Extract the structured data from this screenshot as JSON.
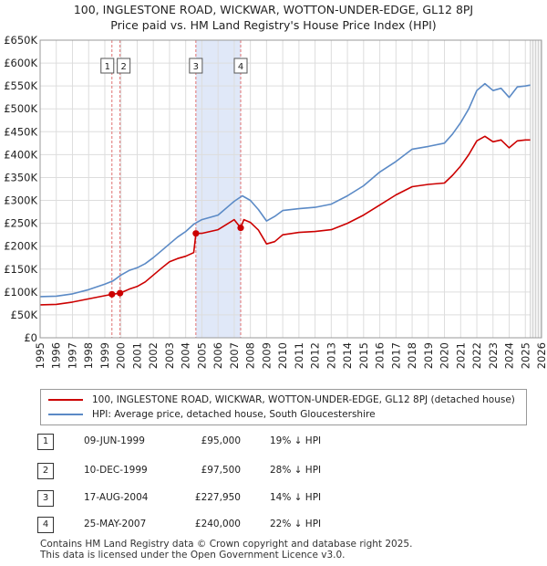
{
  "title_line1": "100, INGLESTONE ROAD, WICKWAR, WOTTON-UNDER-EDGE, GL12 8PJ",
  "title_line2": "Price paid vs. HM Land Registry's House Price Index (HPI)",
  "colors": {
    "property": "#cc0000",
    "hpi": "#5b8ac6",
    "shade": "#e0e8f8",
    "marker_line": "#e07070"
  },
  "legend": {
    "property": "100, INGLESTONE ROAD, WICKWAR, WOTTON-UNDER-EDGE, GL12 8PJ (detached house)",
    "hpi": "HPI: Average price, detached house, South Gloucestershire"
  },
  "transactions": [
    {
      "num": "1",
      "date": "09-JUN-1999",
      "price": "£95,000",
      "hpi": "19% ↓ HPI"
    },
    {
      "num": "2",
      "date": "10-DEC-1999",
      "price": "£97,500",
      "hpi": "28% ↓ HPI"
    },
    {
      "num": "3",
      "date": "17-AUG-2004",
      "price": "£227,950",
      "hpi": "14% ↓ HPI"
    },
    {
      "num": "4",
      "date": "25-MAY-2007",
      "price": "£240,000",
      "hpi": "22% ↓ HPI"
    }
  ],
  "footer": {
    "line1": "Contains HM Land Registry data © Crown copyright and database right 2025.",
    "line2": "This data is licensed under the Open Government Licence v3.0."
  },
  "chart_data": {
    "type": "line",
    "title": "100, INGLESTONE ROAD, WICKWAR, WOTTON-UNDER-EDGE, GL12 8PJ",
    "subtitle": "Price paid vs. HM Land Registry's House Price Index (HPI)",
    "xlim": [
      1995,
      2026
    ],
    "ylim": [
      0,
      650000
    ],
    "x_ticks": [
      1995,
      1996,
      1997,
      1998,
      1999,
      2000,
      2001,
      2002,
      2003,
      2004,
      2005,
      2006,
      2007,
      2008,
      2009,
      2010,
      2011,
      2012,
      2013,
      2014,
      2015,
      2016,
      2017,
      2018,
      2019,
      2020,
      2021,
      2022,
      2023,
      2024,
      2025,
      2026
    ],
    "y_ticks": [
      0,
      50000,
      100000,
      150000,
      200000,
      250000,
      300000,
      350000,
      400000,
      450000,
      500000,
      550000,
      600000,
      650000
    ],
    "y_tick_labels": [
      "£0",
      "£50K",
      "£100K",
      "£150K",
      "£200K",
      "£250K",
      "£300K",
      "£350K",
      "£400K",
      "£450K",
      "£500K",
      "£550K",
      "£600K",
      "£650K"
    ],
    "grid": true,
    "shaded_span": [
      2004.63,
      2007.4
    ],
    "projection_start": 2025.3,
    "series": [
      {
        "name": "HPI: Average price, detached house, South Gloucestershire",
        "points": [
          [
            1995,
            90000
          ],
          [
            1996,
            91000
          ],
          [
            1997,
            96000
          ],
          [
            1998,
            105000
          ],
          [
            1999,
            117000
          ],
          [
            1999.5,
            124000
          ],
          [
            2000,
            137000
          ],
          [
            2000.5,
            147000
          ],
          [
            2001,
            153000
          ],
          [
            2001.5,
            162000
          ],
          [
            2002,
            175000
          ],
          [
            2002.5,
            190000
          ],
          [
            2003,
            205000
          ],
          [
            2003.5,
            220000
          ],
          [
            2004,
            232000
          ],
          [
            2004.5,
            248000
          ],
          [
            2005,
            258000
          ],
          [
            2006,
            268000
          ],
          [
            2007,
            298000
          ],
          [
            2007.5,
            310000
          ],
          [
            2008,
            300000
          ],
          [
            2008.5,
            280000
          ],
          [
            2009,
            255000
          ],
          [
            2009.5,
            265000
          ],
          [
            2010,
            278000
          ],
          [
            2011,
            282000
          ],
          [
            2012,
            285000
          ],
          [
            2013,
            292000
          ],
          [
            2014,
            310000
          ],
          [
            2015,
            332000
          ],
          [
            2016,
            362000
          ],
          [
            2017,
            385000
          ],
          [
            2018,
            412000
          ],
          [
            2019,
            418000
          ],
          [
            2020,
            425000
          ],
          [
            2020.5,
            445000
          ],
          [
            2021,
            470000
          ],
          [
            2021.5,
            500000
          ],
          [
            2022,
            540000
          ],
          [
            2022.5,
            555000
          ],
          [
            2023,
            540000
          ],
          [
            2023.5,
            545000
          ],
          [
            2024,
            525000
          ],
          [
            2024.5,
            548000
          ],
          [
            2025,
            550000
          ],
          [
            2025.3,
            552000
          ]
        ]
      },
      {
        "name": "100, INGLESTONE ROAD, WICKWAR, WOTTON-UNDER-EDGE, GL12 8PJ (detached house)",
        "points": [
          [
            1995,
            72000
          ],
          [
            1996,
            73000
          ],
          [
            1997,
            78000
          ],
          [
            1998,
            85000
          ],
          [
            1999,
            92000
          ],
          [
            1999.44,
            95000
          ],
          [
            1999.94,
            97500
          ],
          [
            2000.5,
            106000
          ],
          [
            2001,
            112000
          ],
          [
            2001.5,
            122000
          ],
          [
            2002,
            137000
          ],
          [
            2002.5,
            152000
          ],
          [
            2003,
            166000
          ],
          [
            2003.5,
            173000
          ],
          [
            2004,
            178000
          ],
          [
            2004.5,
            186000
          ],
          [
            2004.63,
            227950
          ],
          [
            2005,
            228000
          ],
          [
            2006,
            236000
          ],
          [
            2007,
            258000
          ],
          [
            2007.4,
            240000
          ],
          [
            2007.6,
            258000
          ],
          [
            2008,
            252000
          ],
          [
            2008.5,
            235000
          ],
          [
            2009,
            205000
          ],
          [
            2009.5,
            210000
          ],
          [
            2010,
            225000
          ],
          [
            2011,
            230000
          ],
          [
            2012,
            232000
          ],
          [
            2013,
            236000
          ],
          [
            2014,
            250000
          ],
          [
            2015,
            268000
          ],
          [
            2016,
            290000
          ],
          [
            2017,
            312000
          ],
          [
            2018,
            330000
          ],
          [
            2019,
            335000
          ],
          [
            2020,
            338000
          ],
          [
            2020.5,
            355000
          ],
          [
            2021,
            375000
          ],
          [
            2021.5,
            400000
          ],
          [
            2022,
            430000
          ],
          [
            2022.5,
            440000
          ],
          [
            2023,
            428000
          ],
          [
            2023.5,
            432000
          ],
          [
            2024,
            415000
          ],
          [
            2024.5,
            430000
          ],
          [
            2025,
            432000
          ],
          [
            2025.3,
            432000
          ]
        ]
      }
    ],
    "markers": [
      {
        "label": "1",
        "x": 1999.44,
        "y": 95000
      },
      {
        "label": "2",
        "x": 1999.94,
        "y": 97500
      },
      {
        "label": "3",
        "x": 2004.63,
        "y": 227950
      },
      {
        "label": "4",
        "x": 2007.4,
        "y": 240000
      }
    ]
  }
}
